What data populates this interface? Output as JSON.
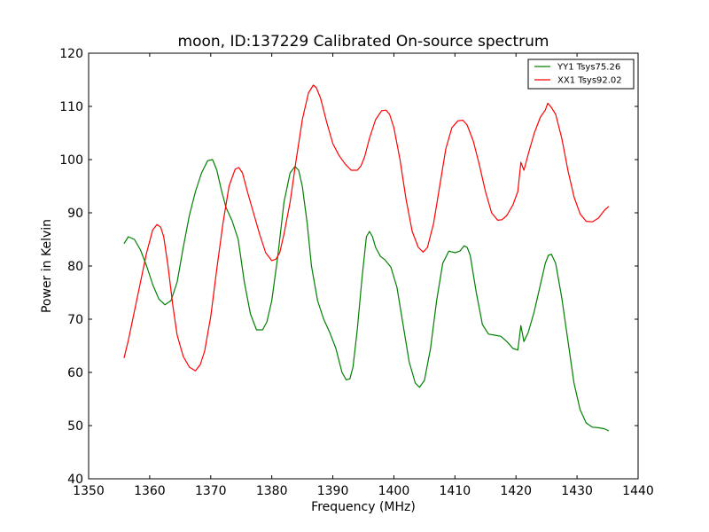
{
  "chart_data": {
    "type": "line",
    "title": "moon, ID:137229 Calibrated On-source spectrum",
    "xlabel": "Frequency (MHz)",
    "ylabel": "Power in Kelvin",
    "xlim": [
      1350,
      1440
    ],
    "ylim": [
      40,
      120
    ],
    "xticks": [
      1350,
      1360,
      1370,
      1380,
      1390,
      1400,
      1410,
      1420,
      1430,
      1440
    ],
    "yticks": [
      40,
      50,
      60,
      70,
      80,
      90,
      100,
      110,
      120
    ],
    "grid": false,
    "legend_position": "top-right",
    "series": [
      {
        "name": "YY1 Tsys75.26",
        "color": "#008000",
        "x": [
          1355.8,
          1356.5,
          1357.5,
          1358.5,
          1359.5,
          1360.5,
          1361.5,
          1362.5,
          1363.5,
          1364.5,
          1365.5,
          1366.5,
          1367.5,
          1368.5,
          1369.5,
          1370.3,
          1371.0,
          1371.8,
          1372.5,
          1373.5,
          1374.5,
          1375.5,
          1376.5,
          1377.5,
          1378.5,
          1379.2,
          1380.0,
          1381.0,
          1382.0,
          1383.0,
          1383.8,
          1384.4,
          1385.0,
          1385.8,
          1386.5,
          1387.5,
          1388.5,
          1389.5,
          1390.5,
          1391.5,
          1392.2,
          1392.8,
          1393.3,
          1394.0,
          1394.8,
          1395.5,
          1396.0,
          1396.5,
          1397.0,
          1397.8,
          1398.5,
          1399.5,
          1400.5,
          1401.5,
          1402.5,
          1403.5,
          1404.2,
          1405.0,
          1406.0,
          1407.0,
          1408.0,
          1409.0,
          1410.0,
          1410.8,
          1411.5,
          1412.0,
          1412.5,
          1413.5,
          1414.5,
          1415.5,
          1416.5,
          1417.5,
          1418.5,
          1419.5,
          1420.3,
          1420.8,
          1421.3,
          1422.0,
          1423.0,
          1424.0,
          1424.8,
          1425.3,
          1425.8,
          1426.5,
          1427.5,
          1428.5,
          1429.5,
          1430.5,
          1431.5,
          1432.5,
          1433.5,
          1434.5,
          1435.2
        ],
        "values": [
          84.2,
          85.5,
          85.0,
          83.0,
          80.0,
          76.5,
          73.8,
          72.7,
          73.5,
          77.0,
          83.5,
          89.5,
          94.0,
          97.5,
          99.8,
          100.0,
          98.0,
          94.0,
          91.0,
          88.5,
          85.0,
          77.0,
          71.0,
          68.0,
          68.0,
          69.5,
          73.5,
          82.0,
          92.0,
          97.5,
          98.7,
          98.0,
          95.0,
          88.0,
          80.0,
          73.5,
          70.0,
          67.5,
          64.5,
          60.0,
          58.6,
          58.8,
          61.0,
          68.0,
          78.0,
          85.5,
          86.5,
          85.5,
          83.5,
          81.8,
          81.2,
          79.8,
          76.0,
          69.0,
          62.0,
          58.0,
          57.2,
          58.5,
          64.5,
          73.5,
          80.5,
          82.8,
          82.5,
          82.8,
          83.8,
          83.5,
          82.0,
          75.0,
          69.0,
          67.2,
          67.0,
          66.8,
          65.8,
          64.5,
          64.2,
          68.8,
          65.8,
          67.5,
          71.5,
          76.5,
          80.5,
          82.0,
          82.2,
          80.5,
          74.0,
          66.0,
          58.0,
          53.0,
          50.5,
          49.7,
          49.6,
          49.4,
          49.0
        ]
      },
      {
        "name": "XX1 Tsys92.02",
        "color": "#ff0000",
        "x": [
          1355.8,
          1356.5,
          1357.5,
          1358.5,
          1359.5,
          1360.5,
          1361.2,
          1361.8,
          1362.3,
          1363.0,
          1363.8,
          1364.5,
          1365.5,
          1366.5,
          1367.5,
          1368.3,
          1369.0,
          1370.0,
          1371.0,
          1372.0,
          1373.0,
          1374.0,
          1374.6,
          1375.2,
          1376.0,
          1377.0,
          1378.0,
          1379.0,
          1380.0,
          1380.7,
          1381.3,
          1382.0,
          1383.0,
          1384.0,
          1385.0,
          1386.0,
          1386.8,
          1387.3,
          1388.0,
          1389.0,
          1390.0,
          1391.0,
          1392.0,
          1393.0,
          1394.0,
          1394.6,
          1395.2,
          1396.0,
          1397.0,
          1398.0,
          1398.7,
          1399.3,
          1400.0,
          1401.0,
          1402.0,
          1403.0,
          1404.0,
          1404.8,
          1405.5,
          1406.5,
          1407.5,
          1408.5,
          1409.5,
          1410.5,
          1411.3,
          1412.0,
          1413.0,
          1414.0,
          1415.0,
          1416.0,
          1417.0,
          1417.7,
          1418.5,
          1419.5,
          1420.3,
          1420.8,
          1421.3,
          1422.0,
          1423.0,
          1424.0,
          1424.8,
          1425.2,
          1425.8,
          1426.5,
          1427.5,
          1428.5,
          1429.5,
          1430.5,
          1431.5,
          1432.5,
          1433.5,
          1434.5,
          1435.2
        ],
        "values": [
          62.7,
          66.0,
          71.5,
          77.0,
          82.5,
          86.8,
          87.8,
          87.3,
          85.5,
          80.0,
          72.5,
          67.0,
          63.0,
          61.0,
          60.3,
          61.5,
          64.0,
          70.5,
          79.5,
          88.0,
          95.0,
          98.2,
          98.5,
          97.5,
          94.0,
          90.0,
          86.0,
          82.5,
          81.0,
          81.3,
          82.5,
          86.0,
          92.0,
          100.0,
          107.5,
          112.5,
          114.0,
          113.5,
          111.5,
          107.0,
          103.0,
          100.8,
          99.2,
          98.0,
          98.0,
          98.8,
          100.5,
          104.0,
          107.5,
          109.2,
          109.3,
          108.5,
          106.0,
          100.0,
          92.5,
          86.5,
          83.5,
          82.6,
          83.5,
          88.0,
          95.0,
          102.0,
          106.0,
          107.3,
          107.4,
          106.5,
          103.5,
          99.0,
          94.0,
          90.0,
          88.6,
          88.7,
          89.5,
          91.5,
          94.0,
          99.5,
          98.0,
          101.0,
          105.0,
          108.0,
          109.3,
          110.6,
          109.8,
          108.5,
          104.0,
          98.0,
          93.0,
          89.8,
          88.4,
          88.3,
          89.0,
          90.5,
          91.2
        ]
      }
    ]
  }
}
